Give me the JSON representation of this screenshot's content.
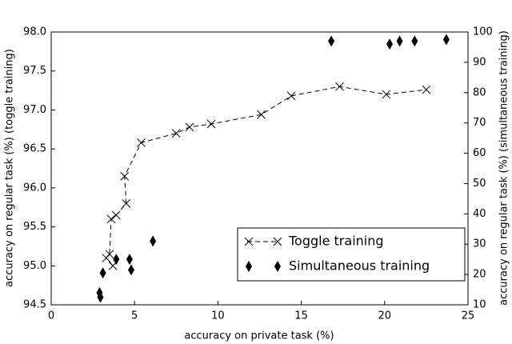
{
  "chart_data": {
    "type": "scatter",
    "x_label": "accuracy on private task (%)",
    "y_label": "accuracy on regular task  (%) (toggle training)",
    "y2_label": "accuracy on regular task  (%) (simultaneous training)",
    "xlim": [
      0,
      25
    ],
    "xticks": [
      0,
      5,
      10,
      15,
      20,
      25
    ],
    "ylim": [
      94.5,
      98.0
    ],
    "yticks": [
      94.5,
      {
        "value": 95.0,
        "label": "95.0"
      },
      95.5,
      {
        "value": 96.0,
        "label": "96.0"
      },
      96.5,
      {
        "value": 97.0,
        "label": "97.0"
      },
      97.5,
      {
        "value": 98.0,
        "label": "98.0"
      }
    ],
    "y2lim": [
      10,
      100
    ],
    "y2ticks": [
      10,
      20,
      30,
      40,
      50,
      60,
      70,
      80,
      90,
      100
    ],
    "legend": "lower right",
    "series": [
      {
        "name": "Toggle training",
        "color": "#000000",
        "marker": "x",
        "line": "dashed",
        "x": [
          3.7,
          3.3,
          3.5,
          3.6,
          3.9,
          4.5,
          4.4,
          5.4,
          7.5,
          8.3,
          9.6,
          12.6,
          14.4,
          17.3,
          20.1,
          22.5
        ],
        "values": [
          95.0,
          95.1,
          95.15,
          95.6,
          95.65,
          95.8,
          96.15,
          96.58,
          96.7,
          96.78,
          96.82,
          96.94,
          97.18,
          97.3,
          97.2,
          97.26
        ]
      },
      {
        "name": "Simultaneous training",
        "color": "#000000",
        "marker": "diamond",
        "axis": "y2",
        "x": [
          2.9,
          2.95,
          3.1,
          3.9,
          4.7,
          4.8,
          6.1,
          16.8,
          20.3,
          20.9,
          21.8,
          23.7
        ],
        "values": [
          14,
          12.5,
          20.5,
          25,
          25,
          21.5,
          31,
          97,
          96,
          97,
          97,
          97.5
        ]
      }
    ]
  }
}
